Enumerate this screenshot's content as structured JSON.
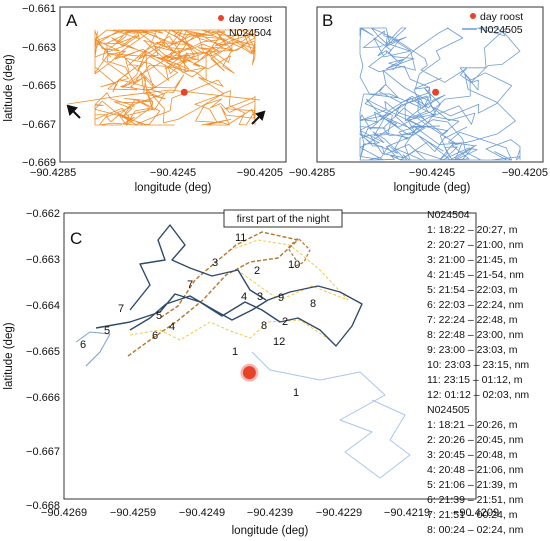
{
  "chart_data": [
    {
      "type": "scatter",
      "panel": "A",
      "xlabel": "longitude (deg)",
      "ylabel": "latitude (deg)",
      "xlim": [
        -90.4285,
        -90.4205
      ],
      "ylim": [
        -0.669,
        -0.661
      ],
      "xticks": [
        "−90.4285",
        "−90.4245",
        "−90.4205"
      ],
      "yticks": [
        "−0.661",
        "−0.663",
        "−0.665",
        "−0.667",
        "−0.669"
      ],
      "legend": [
        "day roost",
        "N024504"
      ],
      "day_roost": [
        -90.4241,
        -0.6654
      ],
      "track_color": "#f28c28",
      "roost_color": "#e8432a"
    },
    {
      "type": "scatter",
      "panel": "B",
      "xlabel": "longitude (deg)",
      "ylabel": "",
      "xlim": [
        -90.4285,
        -90.4205
      ],
      "ylim": [
        -0.669,
        -0.661
      ],
      "xticks": [
        "−90.4285",
        "−90.4245",
        "−90.4205"
      ],
      "yticks": [],
      "legend": [
        "day roost",
        "N024505"
      ],
      "day_roost": [
        -90.4243,
        -0.6654
      ],
      "track_color": "#6b9bd2",
      "roost_color": "#e8432a"
    },
    {
      "type": "line",
      "panel": "C",
      "title": "first part of the night",
      "xlabel": "longitude (deg)",
      "ylabel": "latitude (deg)",
      "xlim": [
        -90.4269,
        -90.4209
      ],
      "ylim": [
        -0.668,
        -0.662
      ],
      "xticks": [
        "−90.4269",
        "−90.4259",
        "−90.4249",
        "−90.4239",
        "−90.4229",
        "−90.4219",
        "−90.4209"
      ],
      "yticks": [
        "−0.662",
        "−0.663",
        "−0.664",
        "−0.665",
        "−0.666",
        "−0.667",
        "−0.668"
      ],
      "day_roost": [
        -90.4242,
        -0.66535
      ],
      "segment_labels_N024504": [
        "2",
        "3",
        "4",
        "5",
        "6",
        "7",
        "8",
        "9",
        "10",
        "11",
        "12"
      ],
      "segment_labels_N024505": [
        "1",
        "1",
        "2",
        "3",
        "4",
        "5",
        "6",
        "7",
        "8"
      ],
      "info": {
        "N024504": {
          "title": "N024504",
          "entries": [
            "1: 18:22 – 20:27, m",
            "2: 20:27 – 21:00, nm",
            "3: 21:00 – 21:45, m",
            "4: 21:45 – 21-54, nm",
            "5: 21:54 – 22:03, m",
            "6: 22:03 – 22:24, nm",
            "7: 22:24 – 22:48, m",
            "8: 22:48 – 23:00, nm",
            "9: 23:00 – 23:03, m",
            "10: 23:03 – 23:15, nm",
            "11: 23:15 – 01:12, m",
            "12: 01:12 – 02:03, nm"
          ]
        },
        "N024505": {
          "title": "N024505",
          "entries": [
            "1: 18:21 – 20:26, m",
            "2: 20:26 – 20:45, nm",
            "3: 20:45 – 20:48, m",
            "4: 20:48 – 21:06, nm",
            "5: 21:06 – 21:39, m",
            "6: 21:39 – 21:51, nm",
            "7: 21:51 – 00:24, m",
            "8: 00:24 – 02:24, nm"
          ]
        }
      }
    }
  ]
}
